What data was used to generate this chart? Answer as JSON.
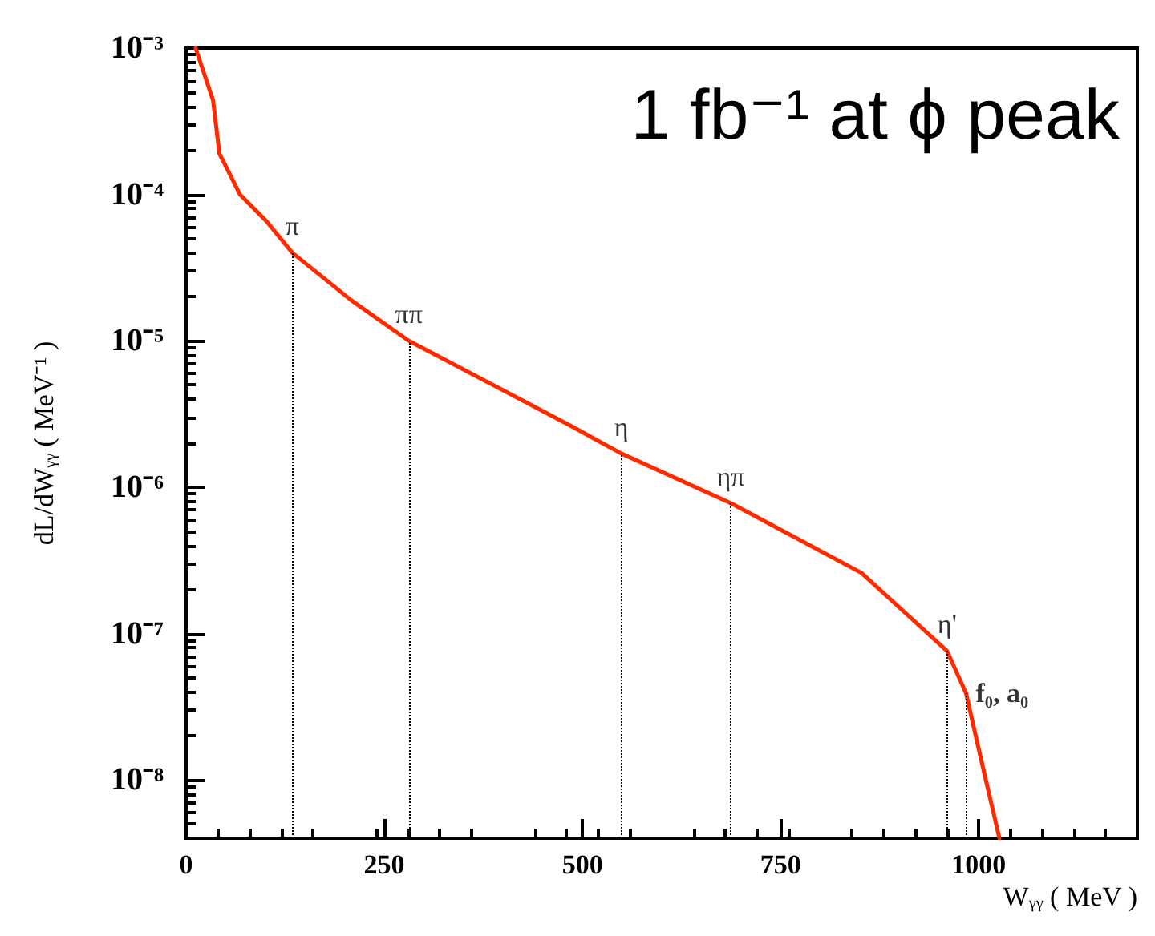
{
  "chart_data": {
    "type": "line",
    "xlabel": "Wᵧᵧ ( MeV )",
    "ylabel": "dL/dWᵧᵧ ( MeV⁻¹ )",
    "series": [
      {
        "color": "#ff2a00",
        "x": [
          12,
          34,
          42,
          68,
          101,
          134,
          208,
          281,
          487,
          549,
          687,
          852,
          960,
          984,
          1002,
          1026
        ],
        "values": [
          0.001,
          0.00044,
          0.00019,
          0.0001,
          6.6e-05,
          4e-05,
          1.9e-05,
          1e-05,
          2.6e-06,
          1.7e-06,
          7.8e-07,
          2.6e-07,
          7.6e-08,
          3.9e-08,
          1.45e-08,
          4e-09
        ]
      }
    ],
    "xlim": [
      0,
      1200
    ],
    "xticks": [
      0,
      250,
      500,
      750,
      1000
    ],
    "ylim": [
      4e-09,
      0.001
    ],
    "yticks": [
      {
        "value": 0.001,
        "label": "10⁻³"
      },
      {
        "value": 0.0001,
        "label": "10⁻⁴"
      },
      {
        "value": 1e-05,
        "label": "10⁻⁵"
      },
      {
        "value": 1e-06,
        "label": "10⁻⁶"
      },
      {
        "value": 1e-07,
        "label": "10⁻⁷"
      },
      {
        "value": 1e-08,
        "label": "10⁻⁸"
      }
    ],
    "log": "y",
    "grid": false,
    "marker": "none",
    "line_style": "solid",
    "annotations": [
      "1 fb⁻¹ at ϕ peak",
      {
        "text": "π",
        "x": 134,
        "y": 4e-05
      },
      {
        "text": "ππ",
        "x": 281,
        "y": 1e-05
      },
      {
        "text": "η",
        "x": 549,
        "y": 1.7e-06
      },
      {
        "text": "ηπ",
        "x": 687,
        "y": 7.8e-07
      },
      {
        "text": "η'",
        "x": 960,
        "y": 7.6e-08
      },
      {
        "text": "f₀, a₀",
        "x": 984,
        "y": 3.9e-08
      }
    ]
  }
}
